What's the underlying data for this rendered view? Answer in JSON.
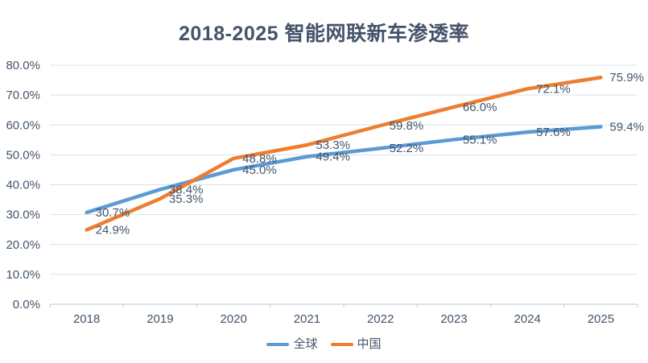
{
  "chart_data": {
    "type": "line",
    "title": "2018-2025 智能网联新车渗透率",
    "categories": [
      "2018",
      "2019",
      "2020",
      "2021",
      "2022",
      "2023",
      "2024",
      "2025"
    ],
    "series": [
      {
        "name": "全球",
        "color": "#5B9BD5",
        "values": [
          30.7,
          38.4,
          45.0,
          49.4,
          52.2,
          55.1,
          57.6,
          59.4
        ]
      },
      {
        "name": "中国",
        "color": "#ED7D31",
        "values": [
          24.9,
          35.3,
          48.8,
          53.3,
          59.8,
          66.0,
          72.1,
          75.9
        ]
      }
    ],
    "ylim": [
      0,
      80
    ],
    "ytick_step": 10,
    "ytick_labels": [
      "0.0%",
      "10.0%",
      "20.0%",
      "30.0%",
      "40.0%",
      "50.0%",
      "60.0%",
      "70.0%",
      "80.0%"
    ],
    "grid": true,
    "legend_position": "bottom",
    "data_labels_shown": true
  },
  "colors": {
    "title_text": "#44546A",
    "axis_text": "#44546A",
    "data_label_text": "#44546A",
    "gridline": "#DCE1EA",
    "axis_line": "#C9D1DC",
    "background": "#FFFFFF"
  }
}
